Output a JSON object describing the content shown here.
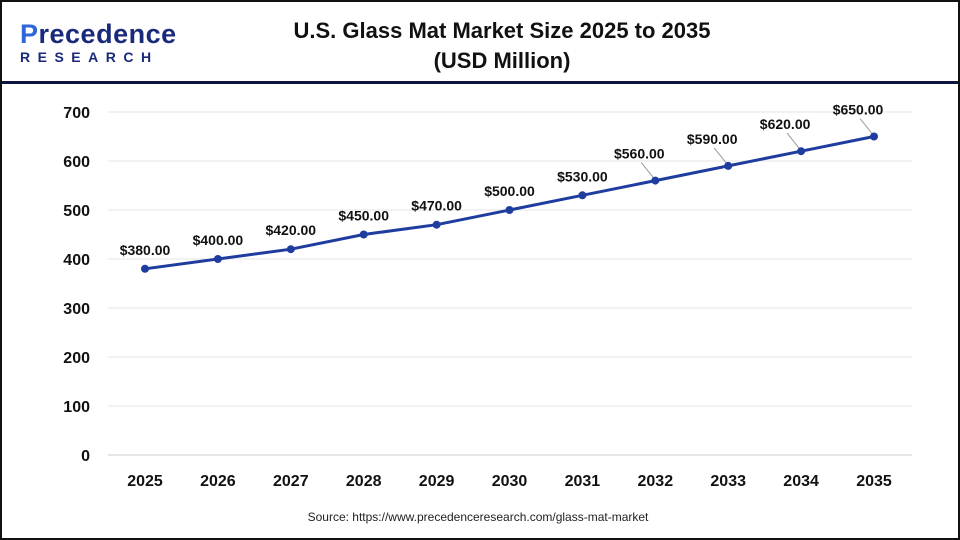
{
  "brand": {
    "line1_a": "P",
    "line1_b": "recedence",
    "line2": "RESEARCH"
  },
  "source": "Source: https://www.precedenceresearch.com/glass-mat-market",
  "colors": {
    "line": "#1f3d9e",
    "header_rule": "#0d1440",
    "grid": "#e6e6e6"
  },
  "chart_data": {
    "type": "line",
    "title": "U.S. Glass Mat Market Size 2025 to 2035",
    "subtitle": "(USD Million)",
    "categories": [
      "2025",
      "2026",
      "2027",
      "2028",
      "2029",
      "2030",
      "2031",
      "2032",
      "2033",
      "2034",
      "2035"
    ],
    "values": [
      380,
      400,
      420,
      450,
      470,
      500,
      530,
      560,
      590,
      620,
      650
    ],
    "data_labels": [
      "$380.00",
      "$400.00",
      "$420.00",
      "$450.00",
      "$470.00",
      "$500.00",
      "$530.00",
      "$560.00",
      "$590.00",
      "$620.00",
      "$650.00"
    ],
    "ylim": [
      0,
      700
    ],
    "yticks": [
      0,
      100,
      200,
      300,
      400,
      500,
      600,
      700
    ],
    "grid": true,
    "xlabel": "",
    "ylabel": ""
  }
}
